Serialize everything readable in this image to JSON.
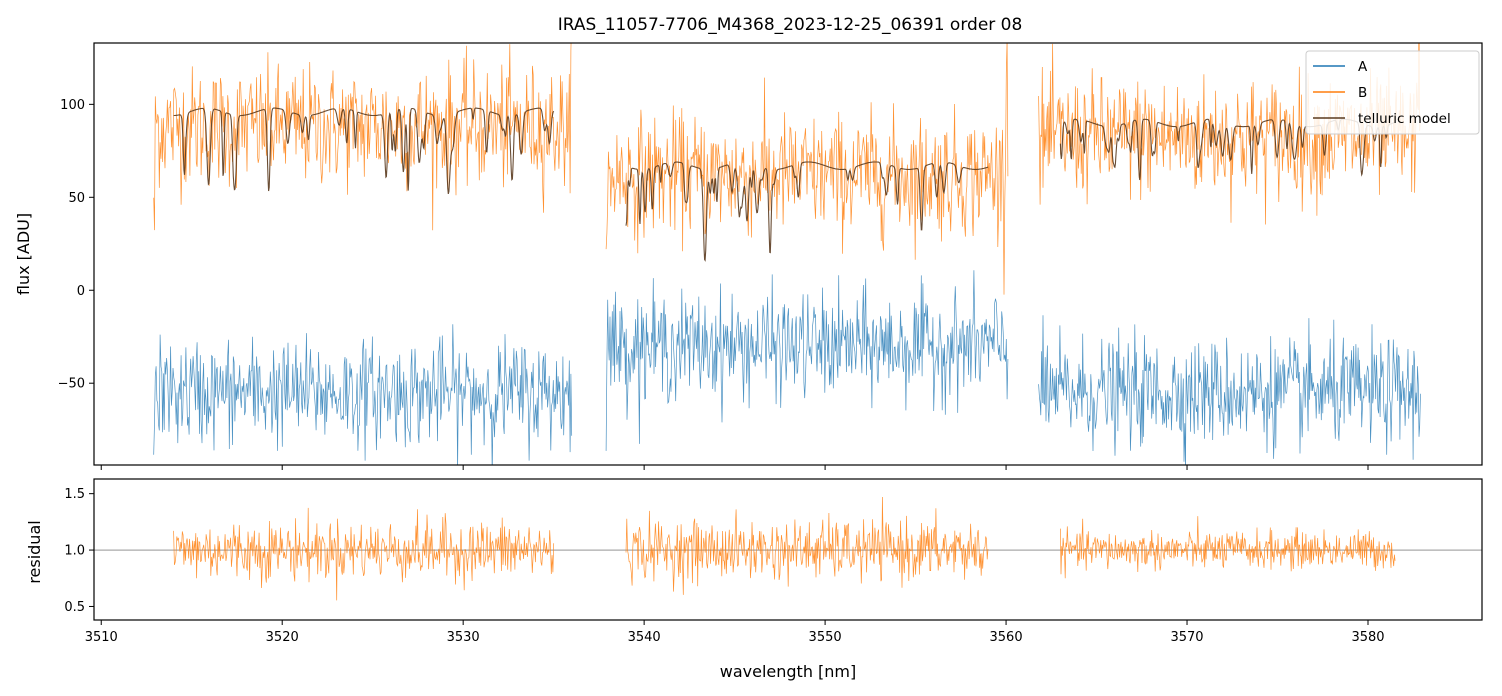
{
  "colors": {
    "A": "#1f77b4",
    "B": "#ff7f0e",
    "telluric": "#5a3a1e",
    "residual": "#ff7f0e",
    "refline": "#555555"
  },
  "chart_data": [
    {
      "type": "line",
      "title": "IRAS_11057-7706_M4368_2023-12-25_06391  order 08",
      "xlabel": "",
      "ylabel": "flux [ADU]",
      "xlim": [
        3509.6,
        3586.3
      ],
      "ylim": [
        -94,
        133
      ],
      "yticks": [
        -50,
        0,
        50,
        100
      ],
      "ytick_labels": [
        "−50",
        "0",
        "50",
        "100"
      ],
      "grid": false,
      "legend": {
        "location": "upper right",
        "entries": [
          "A",
          "B",
          "telluric model"
        ]
      },
      "segments": [
        {
          "x_start": 3512.9,
          "x_end": 3536.0
        },
        {
          "x_start": 3537.9,
          "x_end": 3560.1
        },
        {
          "x_start": 3561.8,
          "x_end": 3582.9
        }
      ],
      "series": [
        {
          "name": "A",
          "approx_level": [
            -55,
            -30,
            -55
          ],
          "noise_sd": 14
        },
        {
          "name": "B",
          "approx_level": [
            88,
            62,
            82
          ],
          "noise_sd": 16
        },
        {
          "name": "telluric model",
          "approx_level": [
            96,
            67,
            90
          ],
          "x_ranges": [
            [
              3514.0,
              3535.0
            ],
            [
              3539.0,
              3559.0
            ],
            [
              3563.0,
              3581.5
            ]
          ]
        }
      ]
    },
    {
      "type": "line",
      "title": "",
      "xlabel": "wavelength [nm]",
      "ylabel": "residual",
      "xlim": [
        3509.6,
        3586.3
      ],
      "ylim": [
        0.38,
        1.63
      ],
      "xticks": [
        3510,
        3520,
        3530,
        3540,
        3550,
        3560,
        3570,
        3580
      ],
      "yticks": [
        0.5,
        1.0,
        1.5
      ],
      "ytick_labels": [
        "0.5",
        "1.0",
        "1.5"
      ],
      "reference_line": 1.0,
      "segments": [
        {
          "x_start": 3514.0,
          "x_end": 3535.0,
          "noise_sd": 0.22
        },
        {
          "x_start": 3539.0,
          "x_end": 3559.0,
          "noise_sd": 0.22
        },
        {
          "x_start": 3563.0,
          "x_end": 3581.5,
          "noise_sd": 0.14
        }
      ],
      "series": [
        {
          "name": "B",
          "approx_level": 1.0
        }
      ]
    }
  ]
}
